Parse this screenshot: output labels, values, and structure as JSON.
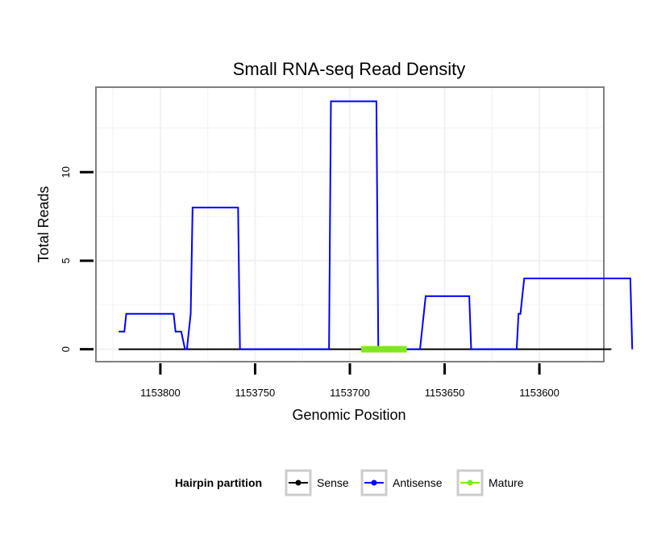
{
  "chart_data": {
    "type": "line",
    "title": "Small RNA-seq Read Density",
    "xlabel": "Genomic Position",
    "ylabel": "Total Reads",
    "x_reversed": true,
    "xlim": [
      1153834,
      1153566
    ],
    "ylim": [
      -0.7,
      14.8
    ],
    "x_ticks": [
      1153800,
      1153750,
      1153700,
      1153650,
      1153600
    ],
    "x_tick_labels": [
      "1153800",
      "1153750",
      "1153700",
      "1153650",
      "1153600"
    ],
    "y_ticks": [
      0,
      5,
      10
    ],
    "y_tick_labels": [
      "0",
      "5",
      "10"
    ],
    "grid": true,
    "legend": {
      "title": "Hairpin partition",
      "position": "bottom",
      "entries": [
        {
          "name": "Sense",
          "color": "#000000"
        },
        {
          "name": "Antisense",
          "color": "#0000ff"
        },
        {
          "name": "Mature",
          "color": "#7fe81a"
        }
      ]
    },
    "series": [
      {
        "name": "Sense",
        "color": "#000000",
        "x": [
          1153822,
          1153562
        ],
        "y": [
          0,
          0
        ]
      },
      {
        "name": "Antisense",
        "color": "#0000ff",
        "x": [
          1153822,
          1153819,
          1153818,
          1153810,
          1153793,
          1153792,
          1153789,
          1153787,
          1153786,
          1153784,
          1153783,
          1153759,
          1153758,
          1153711,
          1153710,
          1153686,
          1153685,
          1153663,
          1153662,
          1153661,
          1153660,
          1153637,
          1153636,
          1153612,
          1153611,
          1153610,
          1153608,
          1153552,
          1153551
        ],
        "y": [
          1,
          1,
          2,
          2,
          2,
          1,
          1,
          0,
          0,
          2,
          8,
          8,
          0,
          0,
          14,
          14,
          0,
          0,
          1,
          2,
          3,
          3,
          0,
          0,
          2,
          2,
          4,
          4,
          0
        ]
      },
      {
        "name": "Mature",
        "color": "#7fe81a",
        "x": [
          1153694,
          1153670
        ],
        "y": [
          0,
          0
        ]
      }
    ]
  }
}
